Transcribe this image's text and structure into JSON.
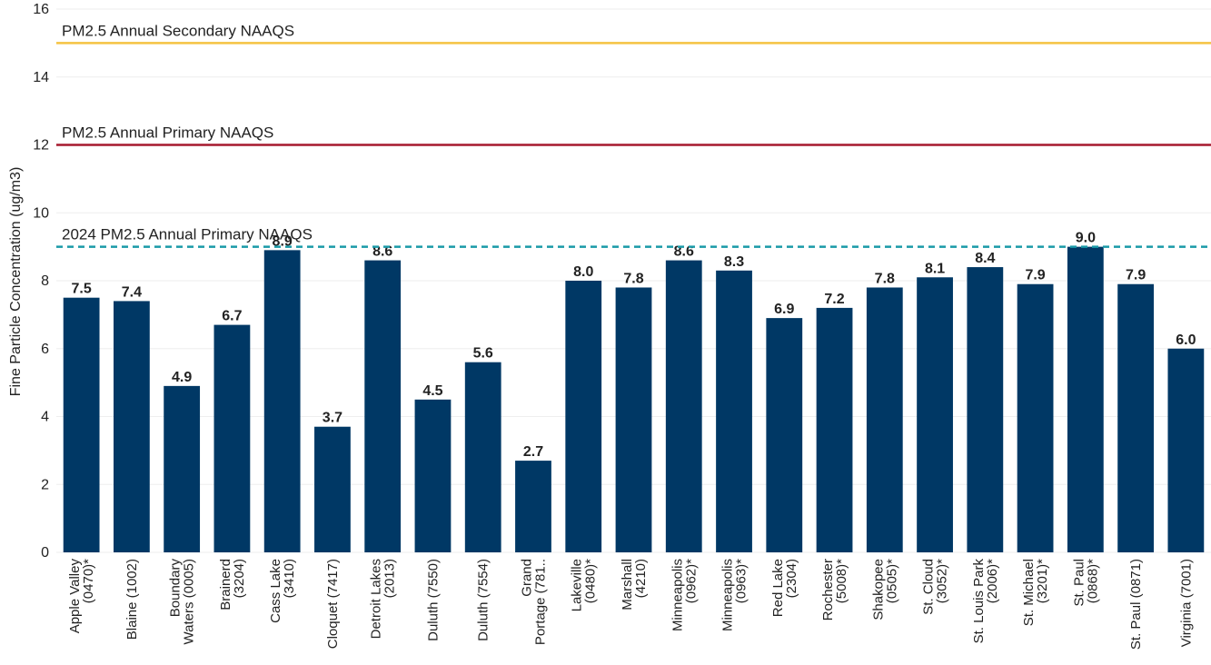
{
  "chart_data": {
    "type": "bar",
    "y_label": "Fine Particle Concentration (ug/m3)",
    "categories": [
      "Apple Valley\n(0470)*",
      "Blaine (1002)",
      "Boundary\nWaters (0005)",
      "Brainerd\n(3204)",
      "Cass Lake\n(3410)",
      "Cloquet (7417)",
      "Detroit Lakes\n(2013)",
      "Duluth (7550)",
      "Duluth (7554)",
      "Grand\nPortage (781..",
      "Lakeville\n(0480)*",
      "Marshall\n(4210)",
      "Minneapolis\n(0962)*",
      "Minneapolis\n(0963)*",
      "Red Lake\n(2304)",
      "Rochester\n(5008)*",
      "Shakopee\n(0505)*",
      "St. Cloud\n(3052)*",
      "St. Louis Park\n(2006)*",
      "St. Michael\n(3201)*",
      "St. Paul\n(0868)*",
      "St. Paul (0871)",
      "Virginia (7001)"
    ],
    "values": [
      7.5,
      7.4,
      4.9,
      6.7,
      8.9,
      3.7,
      8.6,
      4.5,
      5.6,
      2.7,
      8.0,
      7.8,
      8.6,
      8.3,
      6.9,
      7.2,
      7.8,
      8.1,
      8.4,
      7.9,
      9.0,
      7.9,
      6.0
    ],
    "value_labels": [
      "7.5",
      "7.4",
      "4.9",
      "6.7",
      "8.9",
      "3.7",
      "8.6",
      "4.5",
      "5.6",
      "2.7",
      "8.0",
      "7.8",
      "8.6",
      "8.3",
      "6.9",
      "7.2",
      "7.8",
      "8.1",
      "8.4",
      "7.9",
      "9.0",
      "7.9",
      "6.0"
    ],
    "color": "#003865",
    "ylim": [
      0,
      16
    ],
    "yticks": [
      0,
      2,
      4,
      6,
      8,
      10,
      12,
      14,
      16
    ],
    "grid": true,
    "reference_lines": [
      {
        "label": "PM2.5 Annual Secondary NAAQS",
        "value": 15,
        "color": "#f5c342",
        "style": "solid"
      },
      {
        "label": "PM2.5 Annual Primary NAAQS",
        "value": 12,
        "color": "#a6192e",
        "style": "solid"
      },
      {
        "label": "2024 PM2.5 Annual Primary NAAQS",
        "value": 9,
        "color": "#1a9aa8",
        "style": "dashed"
      }
    ]
  }
}
